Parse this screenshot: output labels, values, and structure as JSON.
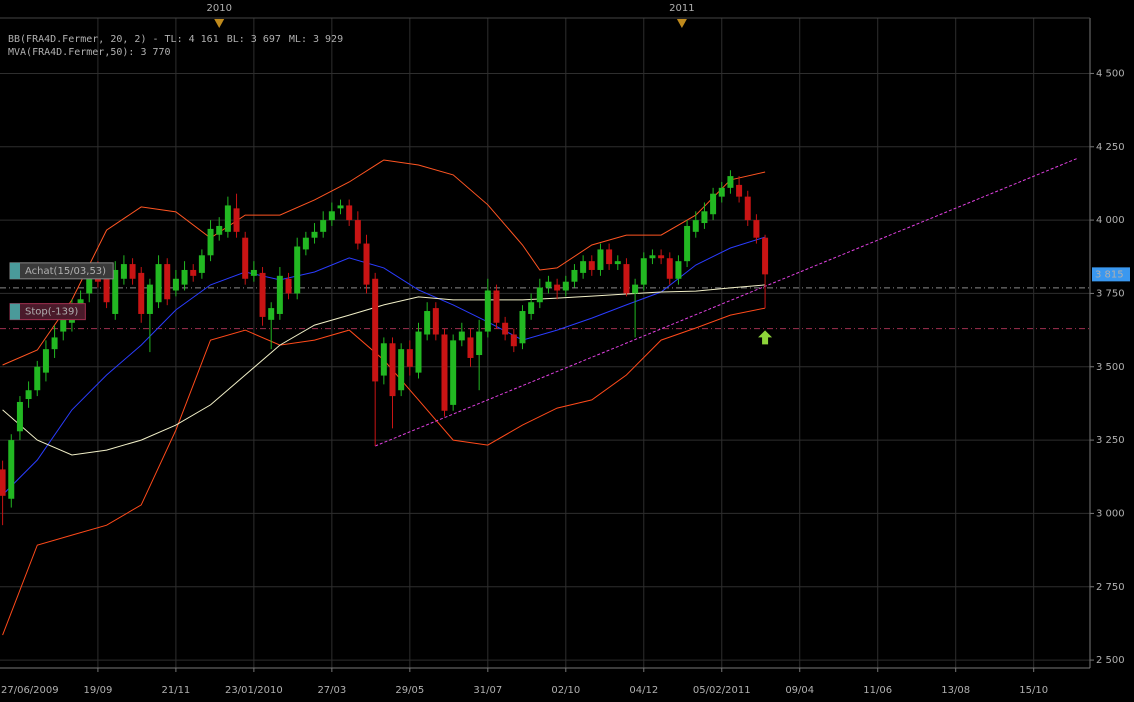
{
  "chart_data": {
    "type": "candlestick",
    "x": [
      1,
      2,
      3,
      4,
      5,
      6,
      7,
      8,
      9,
      10,
      11,
      12,
      13,
      14,
      15,
      16,
      17,
      18,
      19,
      20,
      21,
      22,
      23,
      24,
      25,
      26,
      27,
      28,
      29,
      30,
      31,
      32,
      33,
      34,
      35,
      36,
      37,
      38,
      39,
      40,
      41,
      42,
      43,
      44,
      45,
      46,
      47,
      48,
      49,
      50,
      51,
      52,
      53,
      54,
      55,
      56,
      57,
      58,
      59,
      60,
      61,
      62,
      63,
      64,
      65,
      66,
      67,
      68,
      69,
      70,
      71,
      72,
      73,
      74,
      75,
      76,
      77,
      78,
      79,
      80,
      81,
      82,
      83,
      84,
      85,
      86,
      87,
      88,
      89
    ],
    "open": [
      3150,
      3050,
      3280,
      3390,
      3420,
      3480,
      3560,
      3620,
      3650,
      3700,
      3750,
      3830,
      3800,
      3680,
      3800,
      3850,
      3820,
      3680,
      3720,
      3850,
      3760,
      3780,
      3830,
      3820,
      3880,
      3950,
      3960,
      4040,
      3940,
      3810,
      3820,
      3660,
      3680,
      3800,
      3750,
      3900,
      3940,
      3960,
      4000,
      4040,
      4050,
      4000,
      3920,
      3800,
      3470,
      3580,
      3420,
      3560,
      3480,
      3610,
      3700,
      3610,
      3370,
      3590,
      3600,
      3540,
      3620,
      3760,
      3650,
      3610,
      3580,
      3680,
      3720,
      3770,
      3780,
      3760,
      3790,
      3820,
      3860,
      3830,
      3900,
      3850,
      3850,
      3750,
      3780,
      3870,
      3880,
      3870,
      3800,
      3860,
      3960,
      3990,
      4020,
      4080,
      4110,
      4120,
      4080,
      4000,
      3940
    ],
    "high": [
      3180,
      3270,
      3400,
      3450,
      3520,
      3590,
      3640,
      3700,
      3730,
      3760,
      3840,
      3860,
      3820,
      3860,
      3880,
      3870,
      3840,
      3800,
      3880,
      3870,
      3830,
      3860,
      3850,
      3900,
      4000,
      4010,
      4080,
      4090,
      3960,
      3860,
      3840,
      3720,
      3840,
      3820,
      3940,
      3960,
      3990,
      4030,
      4060,
      4070,
      4070,
      4030,
      3950,
      3820,
      3600,
      3600,
      3580,
      3590,
      3650,
      3720,
      3720,
      3630,
      3610,
      3650,
      3630,
      3660,
      3800,
      3780,
      3670,
      3630,
      3710,
      3750,
      3800,
      3810,
      3800,
      3810,
      3850,
      3880,
      3880,
      3920,
      3920,
      3880,
      3870,
      3800,
      3890,
      3900,
      3900,
      3890,
      3880,
      4000,
      4030,
      4060,
      4110,
      4130,
      4170,
      4150,
      4100,
      4020,
      3950
    ],
    "low": [
      2960,
      3020,
      3250,
      3360,
      3400,
      3450,
      3530,
      3590,
      3620,
      3670,
      3720,
      3770,
      3700,
      3660,
      3780,
      3780,
      3650,
      3550,
      3700,
      3710,
      3740,
      3760,
      3790,
      3800,
      3860,
      3930,
      3940,
      3940,
      3780,
      3790,
      3640,
      3560,
      3660,
      3730,
      3730,
      3880,
      3920,
      3940,
      3980,
      4020,
      3980,
      3900,
      3750,
      3230,
      3440,
      3290,
      3400,
      3470,
      3460,
      3590,
      3590,
      3330,
      3350,
      3570,
      3500,
      3420,
      3600,
      3630,
      3590,
      3550,
      3560,
      3660,
      3700,
      3750,
      3730,
      3740,
      3770,
      3800,
      3810,
      3810,
      3830,
      3830,
      3740,
      3600,
      3760,
      3850,
      3850,
      3780,
      3780,
      3840,
      3940,
      3970,
      4000,
      4060,
      4090,
      4060,
      3980,
      3920,
      3700
    ],
    "close": [
      3060,
      3250,
      3380,
      3420,
      3500,
      3560,
      3600,
      3680,
      3700,
      3730,
      3810,
      3790,
      3720,
      3830,
      3850,
      3800,
      3680,
      3780,
      3850,
      3730,
      3800,
      3830,
      3810,
      3880,
      3970,
      3980,
      4050,
      3960,
      3800,
      3830,
      3670,
      3700,
      3810,
      3750,
      3910,
      3940,
      3960,
      4000,
      4030,
      4050,
      4000,
      3920,
      3780,
      3450,
      3580,
      3400,
      3560,
      3500,
      3620,
      3690,
      3610,
      3350,
      3590,
      3620,
      3530,
      3620,
      3760,
      3650,
      3610,
      3570,
      3690,
      3720,
      3770,
      3790,
      3760,
      3790,
      3830,
      3860,
      3830,
      3900,
      3850,
      3860,
      3750,
      3780,
      3870,
      3880,
      3870,
      3800,
      3860,
      3980,
      4000,
      4030,
      4090,
      4110,
      4150,
      4080,
      4000,
      3940,
      3815
    ],
    "up_color": "#22b822",
    "down_color": "#c81414",
    "series": [
      {
        "name": "BB(FRA4D.Fermer, 20, 2) - TL: 4 161",
        "color": "#ff5522",
        "x": [
          1,
          5,
          9,
          13,
          17,
          21,
          25,
          29,
          33,
          37,
          41,
          45,
          49,
          53,
          57,
          61,
          63,
          65,
          69,
          73,
          77,
          81,
          85,
          89
        ],
        "values": [
          3506,
          3557,
          3728,
          3966,
          4045,
          4028,
          3939,
          4017,
          4017,
          4069,
          4130,
          4205,
          4188,
          4154,
          4052,
          3915,
          3830,
          3837,
          3915,
          3949,
          3949,
          4017,
          4137,
          4164
        ]
      },
      {
        "name": "BL: 3 697",
        "color": "#ff4a1a",
        "x": [
          1,
          5,
          9,
          13,
          17,
          21,
          25,
          29,
          33,
          37,
          41,
          45,
          49,
          53,
          57,
          61,
          65,
          69,
          73,
          77,
          81,
          85,
          89
        ],
        "values": [
          2585,
          2892,
          2926,
          2960,
          3029,
          3284,
          3591,
          3625,
          3574,
          3591,
          3625,
          3523,
          3387,
          3250,
          3233,
          3301,
          3359,
          3387,
          3472,
          3591,
          3632,
          3676,
          3700
        ]
      },
      {
        "name": "ML: 3 929",
        "color": "#2a3cff",
        "x": [
          1,
          5,
          9,
          13,
          17,
          21,
          25,
          29,
          33,
          37,
          41,
          45,
          49,
          53,
          57,
          61,
          65,
          69,
          73,
          77,
          81,
          85,
          89
        ],
        "values": [
          3063,
          3182,
          3353,
          3472,
          3574,
          3694,
          3779,
          3823,
          3796,
          3823,
          3871,
          3837,
          3762,
          3711,
          3653,
          3591,
          3625,
          3666,
          3711,
          3755,
          3847,
          3905,
          3942
        ]
      },
      {
        "name": "MVA(FRA4D.Fermer,50): 3 770",
        "color": "#f2f0c8",
        "x": [
          1,
          5,
          9,
          13,
          17,
          21,
          25,
          29,
          33,
          37,
          41,
          45,
          49,
          53,
          57,
          61,
          65,
          69,
          73,
          77,
          81,
          85,
          89
        ],
        "values": [
          3353,
          3250,
          3199,
          3216,
          3250,
          3301,
          3370,
          3472,
          3574,
          3642,
          3676,
          3711,
          3738,
          3728,
          3728,
          3728,
          3734,
          3741,
          3748,
          3755,
          3758,
          3769,
          3779
        ]
      }
    ],
    "trendline": {
      "x": [
        44,
        125
      ],
      "values": [
        3230,
        4210
      ],
      "color": "#e040e0"
    },
    "levels": [
      {
        "label": "Achat(15/03,53)",
        "value": 3769,
        "color": "#8a8a8a"
      },
      {
        "label": "Stop(-139)",
        "value": 3630,
        "color": "#a03050"
      }
    ],
    "last_price": {
      "value": 3815,
      "label": "3 815"
    },
    "signal_arrow": {
      "x": 89,
      "value": 3600
    },
    "year_markers": [
      {
        "value": 26,
        "label": "2010"
      },
      {
        "value": 79.4,
        "label": "2011"
      }
    ],
    "xlim": [
      0.7,
      126.5
    ],
    "ylim": [
      2473,
      4689
    ],
    "xticks": [
      {
        "value": 0,
        "label": "27/06/2009"
      },
      {
        "value": 12,
        "label": "19/09"
      },
      {
        "value": 21,
        "label": "21/11"
      },
      {
        "value": 30,
        "label": "23/01/2010"
      },
      {
        "value": 39,
        "label": "27/03"
      },
      {
        "value": 48,
        "label": "29/05"
      },
      {
        "value": 57,
        "label": "31/07"
      },
      {
        "value": 66,
        "label": "02/10"
      },
      {
        "value": 75,
        "label": "04/12"
      },
      {
        "value": 84,
        "label": "05/02/2011"
      },
      {
        "value": 93,
        "label": "09/04"
      },
      {
        "value": 102,
        "label": "11/06"
      },
      {
        "value": 111,
        "label": "13/08"
      },
      {
        "value": 120,
        "label": "15/10"
      }
    ],
    "yticks": [
      {
        "value": 2500,
        "label": "2 500"
      },
      {
        "value": 2750,
        "label": "2 750"
      },
      {
        "value": 3000,
        "label": "3 000"
      },
      {
        "value": 3250,
        "label": "3 250"
      },
      {
        "value": 3500,
        "label": "3 500"
      },
      {
        "value": 3750,
        "label": "3 750"
      },
      {
        "value": 4000,
        "label": "4 000"
      },
      {
        "value": 4250,
        "label": "4 250"
      },
      {
        "value": 4500,
        "label": "4 500"
      }
    ],
    "grid": true
  }
}
